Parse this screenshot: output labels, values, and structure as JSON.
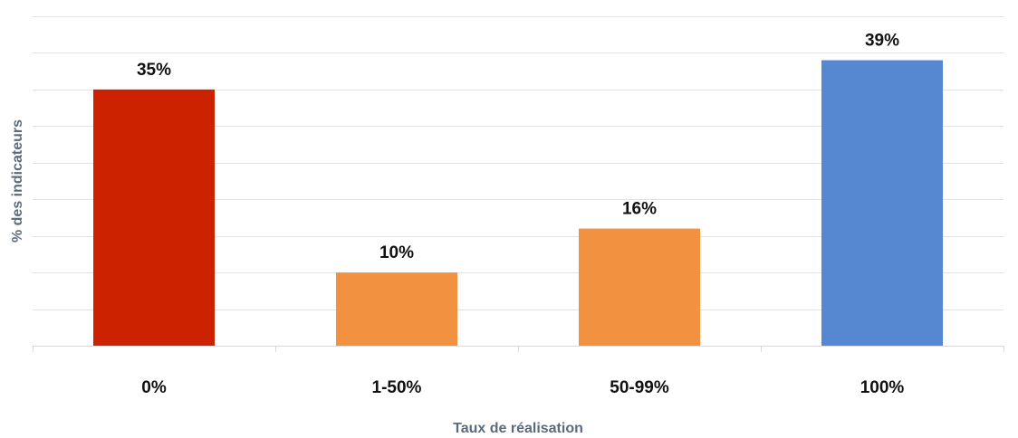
{
  "chart_data": {
    "type": "bar",
    "title": "",
    "xlabel": "Taux de réalisation",
    "ylabel": "% des indicateurs",
    "categories": [
      "0%",
      "1-50%",
      "50-99%",
      "100%"
    ],
    "values": [
      35,
      10,
      16,
      39
    ],
    "data_labels": [
      "35%",
      "10%",
      "16%",
      "39%"
    ],
    "colors": [
      "#cc2200",
      "#f29240",
      "#f29240",
      "#5588d1"
    ],
    "ylim": [
      0,
      45
    ],
    "grid": true,
    "legend": "none"
  }
}
